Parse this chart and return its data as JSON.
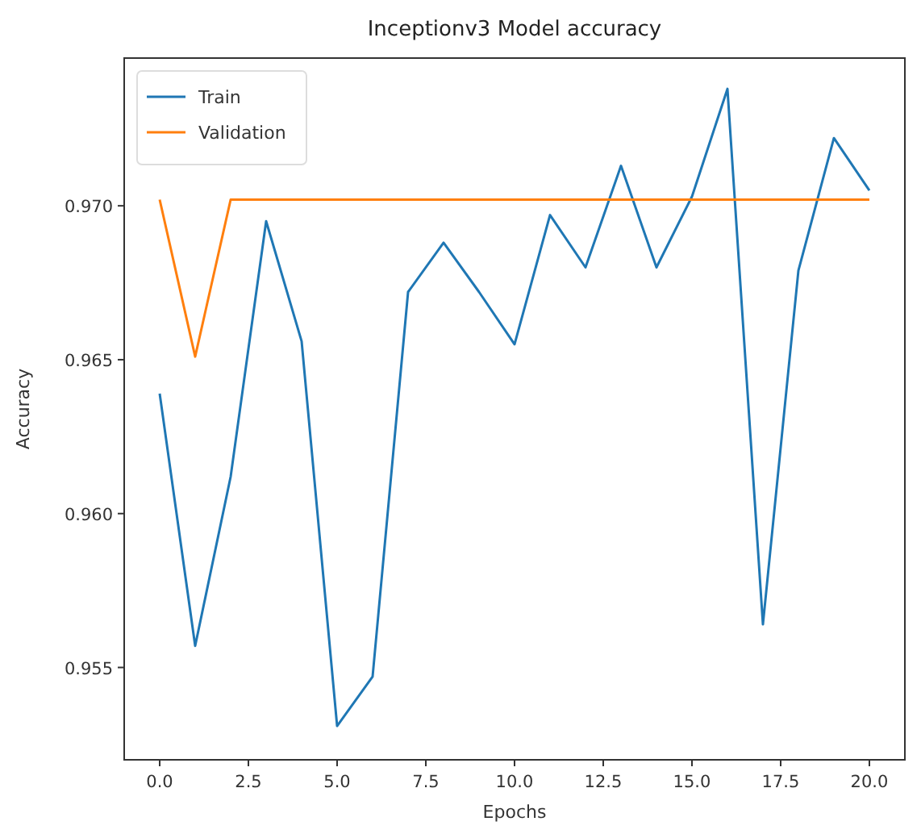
{
  "chart_data": {
    "type": "line",
    "title": "Inceptionv3 Model accuracy",
    "xlabel": "Epochs",
    "ylabel": "Accuracy",
    "x": [
      0,
      1,
      2,
      3,
      4,
      5,
      6,
      7,
      8,
      9,
      10,
      11,
      12,
      13,
      14,
      15,
      16,
      17,
      18,
      19,
      20
    ],
    "series": [
      {
        "name": "Train",
        "color": "#1f77b4",
        "values": [
          0.9639,
          0.9557,
          0.9612,
          0.9695,
          0.9656,
          0.9531,
          0.9547,
          0.9672,
          0.9688,
          0.9672,
          0.9655,
          0.9697,
          0.968,
          0.9713,
          0.968,
          0.9703,
          0.9738,
          0.9564,
          0.9679,
          0.9722,
          0.9705
        ]
      },
      {
        "name": "Validation",
        "color": "#ff7f0e",
        "values": [
          0.9702,
          0.9651,
          0.9702,
          0.9702,
          0.9702,
          0.9702,
          0.9702,
          0.9702,
          0.9702,
          0.9702,
          0.9702,
          0.9702,
          0.9702,
          0.9702,
          0.9702,
          0.9702,
          0.9702,
          0.9702,
          0.9702,
          0.9702,
          0.9702
        ]
      }
    ],
    "xlim": [
      -1,
      21
    ],
    "ylim": [
      0.952,
      0.9748
    ],
    "xticks": [
      {
        "value": 0,
        "label": "0.0"
      },
      {
        "value": 2.5,
        "label": "2.5"
      },
      {
        "value": 5,
        "label": "5.0"
      },
      {
        "value": 7.5,
        "label": "7.5"
      },
      {
        "value": 10,
        "label": "10.0"
      },
      {
        "value": 12.5,
        "label": "12.5"
      },
      {
        "value": 15,
        "label": "15.0"
      },
      {
        "value": 17.5,
        "label": "17.5"
      },
      {
        "value": 20,
        "label": "20.0"
      }
    ],
    "yticks": [
      {
        "value": 0.955,
        "label": "0.955"
      },
      {
        "value": 0.96,
        "label": "0.960"
      },
      {
        "value": 0.965,
        "label": "0.965"
      },
      {
        "value": 0.97,
        "label": "0.970"
      }
    ],
    "grid": false,
    "legend": "top left",
    "marker": "none",
    "line_style": "solid"
  }
}
